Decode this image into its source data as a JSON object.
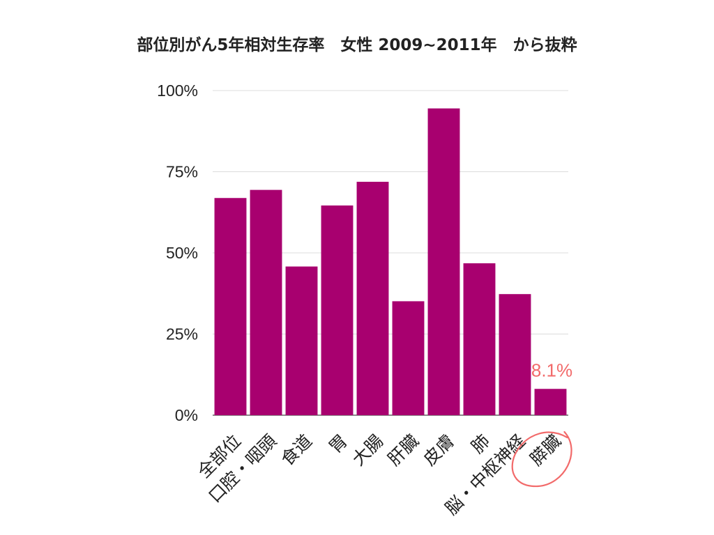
{
  "chart_data": {
    "type": "bar",
    "title": "部位別がん5年相対生存率　女性 2009~2011年　から抜粋",
    "categories": [
      [
        "全部位"
      ],
      [
        "口腔・咽頭"
      ],
      [
        "食道"
      ],
      [
        "胃"
      ],
      [
        "大腸"
      ],
      [
        "肝臓"
      ],
      [
        "皮膚"
      ],
      [
        "肺"
      ],
      [
        "脳・中枢神経"
      ],
      [
        "膵臓"
      ]
    ],
    "values": [
      66.9,
      69.4,
      45.8,
      64.6,
      71.9,
      35.1,
      94.5,
      46.8,
      37.3,
      8.1
    ],
    "ylim": [
      0,
      100
    ],
    "y_ticks": [
      {
        "value": 0,
        "label": "0%"
      },
      {
        "value": 25,
        "label": "25%"
      },
      {
        "value": 50,
        "label": "50%"
      },
      {
        "value": 75,
        "label": "75%"
      },
      {
        "value": 100,
        "label": "100%"
      }
    ],
    "grid": true,
    "bar_color": "#a8006f",
    "annotation": {
      "category": "膵臓",
      "text": "8.1%",
      "color": "#f26a6a",
      "circled": true
    }
  }
}
